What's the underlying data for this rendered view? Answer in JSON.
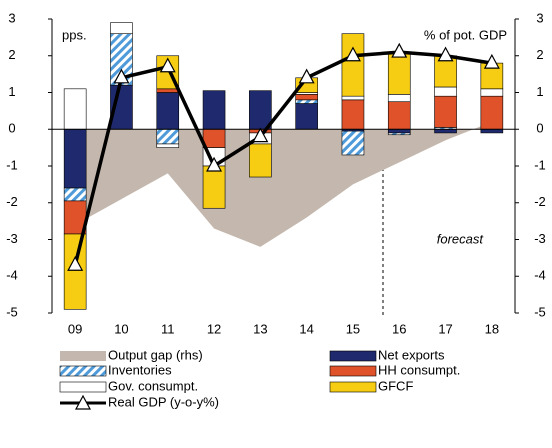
{
  "chart_data": {
    "type": "combo",
    "y_label": "pps.",
    "y2_label": "% of pot. GDP",
    "annotation": "forecast",
    "categories": [
      "09",
      "10",
      "11",
      "12",
      "13",
      "14",
      "15",
      "16",
      "17",
      "18"
    ],
    "ylim": [
      -5,
      3
    ],
    "yticks": [
      -5,
      -4,
      -3,
      -2,
      -1,
      0,
      1,
      2,
      3
    ],
    "y2lim": [
      -5,
      3
    ],
    "y2ticks": [
      -5,
      -4,
      -3,
      -2,
      -1,
      0,
      1,
      2,
      3
    ],
    "series": [
      {
        "name": "Output gap (rhs)",
        "type": "area",
        "axis": "y2",
        "color": "#c4b7ad",
        "values": [
          -2.6,
          -1.9,
          -1.2,
          -2.7,
          -3.2,
          -2.4,
          -1.5,
          -0.9,
          -0.3,
          0.2
        ]
      },
      {
        "name": "Net exports",
        "type": "bar",
        "color": "#1f2a6e",
        "values": [
          -1.6,
          1.2,
          1.0,
          1.05,
          1.05,
          0.7,
          -0.05,
          -0.1,
          -0.1,
          -0.1
        ]
      },
      {
        "name": "Inventories",
        "type": "bar",
        "color": "#4f9bd9",
        "hatch": true,
        "values": [
          -0.35,
          1.4,
          -0.4,
          0,
          0,
          0.1,
          -0.65,
          -0.05,
          0.05,
          0
        ]
      },
      {
        "name": "HH consumpt.",
        "type": "bar",
        "color": "#e0522a",
        "values": [
          -0.9,
          0,
          0.1,
          -0.5,
          -0.1,
          0.15,
          0.8,
          0.75,
          0.85,
          0.9
        ]
      },
      {
        "name": "Gov. consumpt.",
        "type": "bar",
        "color": "#ffffff",
        "values": [
          1.1,
          0.3,
          -0.1,
          -0.5,
          -0.3,
          0.05,
          0.1,
          0.2,
          0.25,
          0.2
        ]
      },
      {
        "name": "GFCF",
        "type": "bar",
        "color": "#f7cd14",
        "values": [
          -2.05,
          0,
          0.9,
          -1.15,
          -0.9,
          0.4,
          1.7,
          1.1,
          0.85,
          0.7
        ]
      },
      {
        "name": "Real GDP (y-o-y%)",
        "type": "line",
        "color": "#000000",
        "values": [
          -3.7,
          1.4,
          1.7,
          -1.0,
          -0.2,
          1.4,
          2.0,
          2.1,
          2.0,
          1.8
        ]
      }
    ]
  }
}
